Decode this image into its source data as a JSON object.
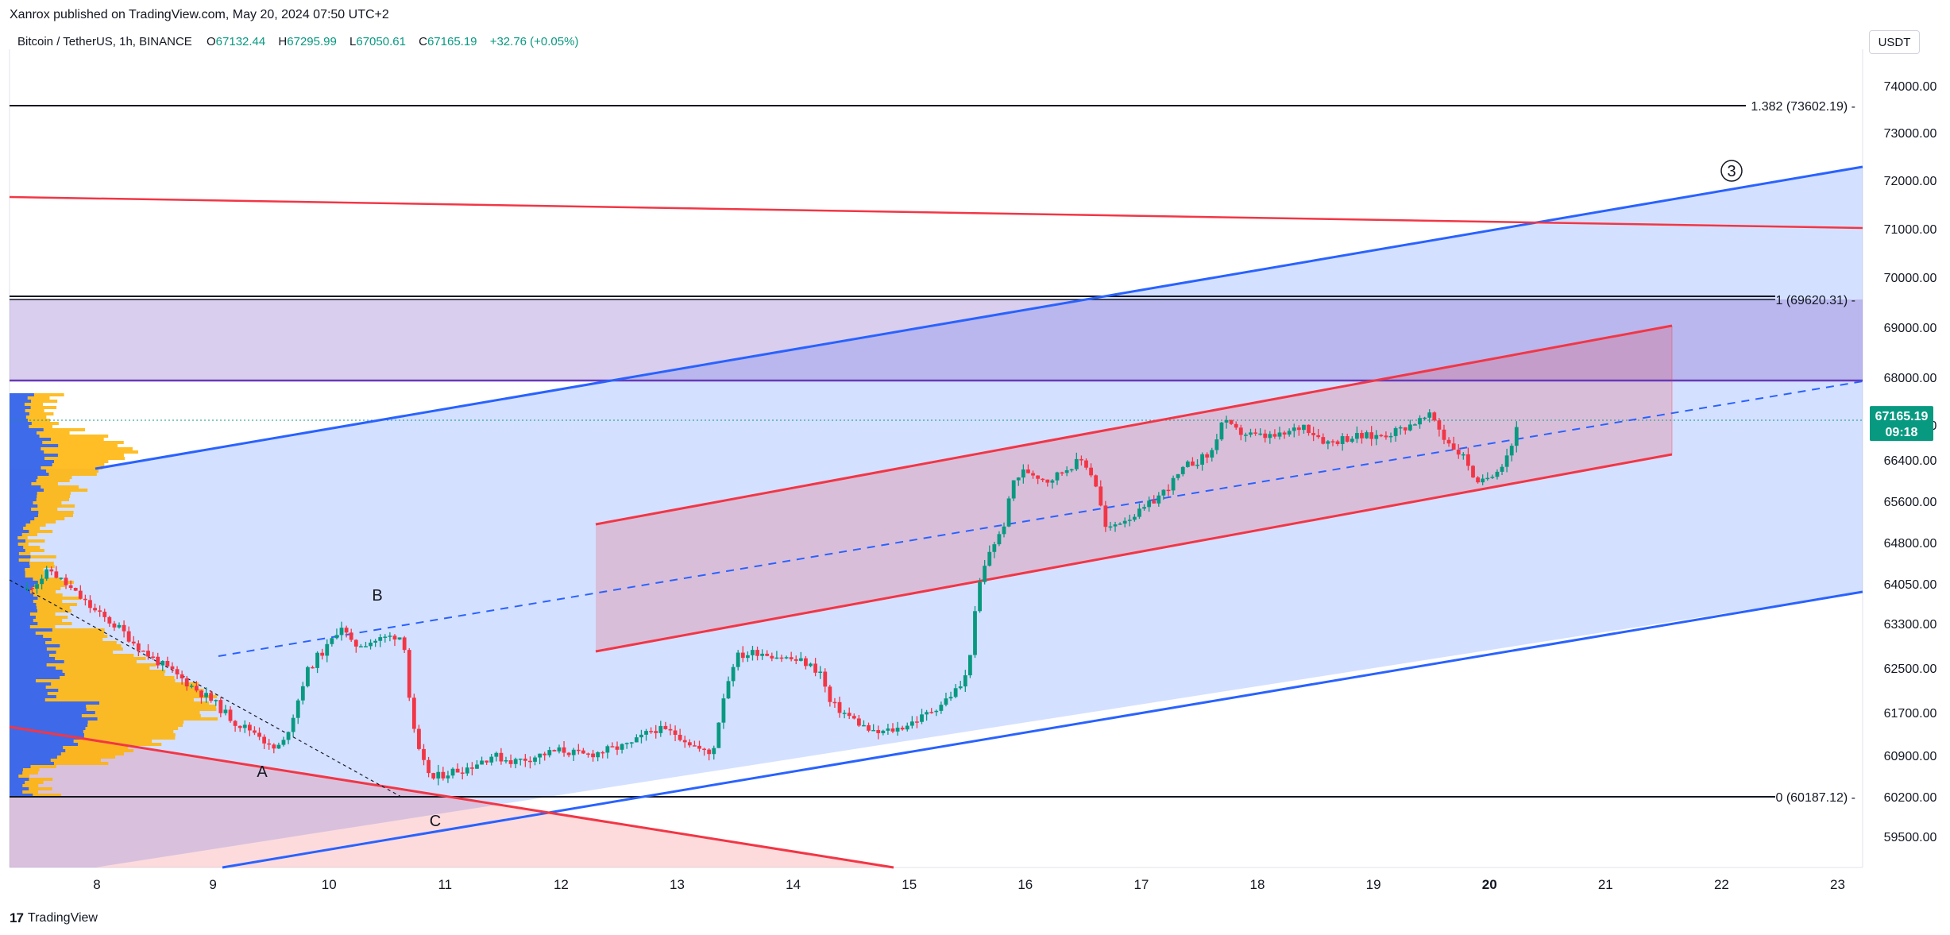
{
  "header": {
    "published": "Xanrox published on TradingView.com, May 20, 2024 07:50 UTC+2"
  },
  "legend": {
    "symbol": "Bitcoin / TetherUS, 1h, BINANCE",
    "o_label": "O",
    "o": "67132.44",
    "h_label": "H",
    "h": "67295.99",
    "l_label": "L",
    "l": "67050.61",
    "c_label": "C",
    "c": "67165.19",
    "change": "+32.76 (+0.05%)"
  },
  "currency": "USDT",
  "brand": "TradingView",
  "chart_data": {
    "type": "candlestick",
    "y_axis_ticks": [
      "74000.00",
      "73000.00",
      "72000.00",
      "71000.00",
      "70000.00",
      "69000.00",
      "68000.00",
      "67000.00",
      "66400.00",
      "65600.00",
      "64800.00",
      "64050.00",
      "63300.00",
      "62500.00",
      "61700.00",
      "60900.00",
      "60200.00",
      "59500.00"
    ],
    "x_axis_ticks": [
      "8",
      "9",
      "10",
      "11",
      "12",
      "13",
      "14",
      "15",
      "16",
      "17",
      "18",
      "19",
      "20",
      "21",
      "22",
      "23"
    ],
    "last_price": "67165.19",
    "countdown": "09:18",
    "fib_levels": [
      {
        "label": "1.382 (73602.19)",
        "price": 73602.19
      },
      {
        "label": "1 (69620.31)",
        "price": 69620.31
      },
      {
        "label": "0 (60187.12)",
        "price": 60187.12
      }
    ],
    "wave_labels": [
      "A",
      "B",
      "C",
      "3"
    ],
    "colors": {
      "up": "#089981",
      "down": "#f23645",
      "channel_blue": "#2962ff",
      "channel_red": "#f23645",
      "zone_purple": "#673ab7",
      "profile_yellow": "#ffb300",
      "profile_blue": "#2962ff"
    },
    "price_path": [
      [
        7.4,
        63950
      ],
      [
        7.6,
        64300
      ],
      [
        7.8,
        63900
      ],
      [
        8.0,
        63500
      ],
      [
        8.2,
        63200
      ],
      [
        8.4,
        62800
      ],
      [
        8.6,
        62500
      ],
      [
        8.8,
        62200
      ],
      [
        9.0,
        61900
      ],
      [
        9.2,
        61500
      ],
      [
        9.4,
        61300
      ],
      [
        9.5,
        61000
      ],
      [
        9.6,
        61100
      ],
      [
        9.7,
        61700
      ],
      [
        9.8,
        62400
      ],
      [
        9.9,
        62700
      ],
      [
        10.0,
        62900
      ],
      [
        10.1,
        63300
      ],
      [
        10.2,
        62900
      ],
      [
        10.4,
        63000
      ],
      [
        10.6,
        63100
      ],
      [
        10.65,
        62900
      ],
      [
        10.7,
        61800
      ],
      [
        10.75,
        61100
      ],
      [
        10.8,
        60800
      ],
      [
        10.9,
        60500
      ],
      [
        11.0,
        60600
      ],
      [
        11.2,
        60700
      ],
      [
        11.4,
        60900
      ],
      [
        11.6,
        60800
      ],
      [
        11.8,
        60900
      ],
      [
        12.0,
        61000
      ],
      [
        12.2,
        60900
      ],
      [
        12.4,
        61000
      ],
      [
        12.6,
        61100
      ],
      [
        12.8,
        61400
      ],
      [
        13.0,
        61300
      ],
      [
        13.2,
        61000
      ],
      [
        13.3,
        60900
      ],
      [
        13.4,
        62000
      ],
      [
        13.5,
        62700
      ],
      [
        13.7,
        62800
      ],
      [
        13.9,
        62700
      ],
      [
        14.1,
        62600
      ],
      [
        14.25,
        62400
      ],
      [
        14.3,
        61900
      ],
      [
        14.5,
        61600
      ],
      [
        14.7,
        61300
      ],
      [
        14.9,
        61400
      ],
      [
        15.1,
        61600
      ],
      [
        15.3,
        61900
      ],
      [
        15.45,
        62200
      ],
      [
        15.5,
        62400
      ],
      [
        15.6,
        64000
      ],
      [
        15.7,
        64700
      ],
      [
        15.8,
        65000
      ],
      [
        15.9,
        66000
      ],
      [
        16.0,
        66200
      ],
      [
        16.2,
        66000
      ],
      [
        16.4,
        66300
      ],
      [
        16.5,
        66400
      ],
      [
        16.6,
        66000
      ],
      [
        16.7,
        65000
      ],
      [
        16.8,
        65200
      ],
      [
        17.0,
        65400
      ],
      [
        17.2,
        65800
      ],
      [
        17.4,
        66300
      ],
      [
        17.6,
        66500
      ],
      [
        17.7,
        67100
      ],
      [
        17.8,
        66900
      ],
      [
        18.0,
        66800
      ],
      [
        18.2,
        66800
      ],
      [
        18.4,
        67000
      ],
      [
        18.6,
        66700
      ],
      [
        18.8,
        66800
      ],
      [
        19.0,
        66800
      ],
      [
        19.2,
        66900
      ],
      [
        19.4,
        67100
      ],
      [
        19.5,
        67200
      ],
      [
        19.6,
        66800
      ],
      [
        19.8,
        66400
      ],
      [
        19.9,
        65900
      ],
      [
        20.0,
        66100
      ],
      [
        20.1,
        66300
      ],
      [
        20.2,
        66700
      ],
      [
        20.25,
        67100
      ]
    ]
  }
}
